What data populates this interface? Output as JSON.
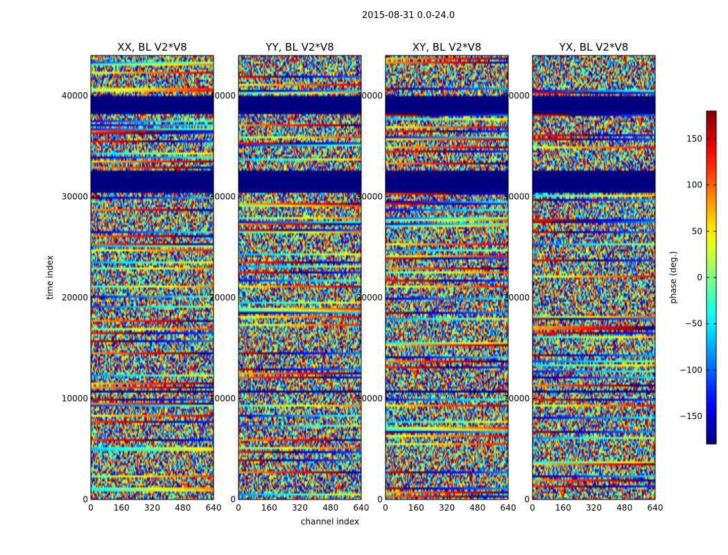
{
  "chart_data": {
    "type": "heatmap",
    "suptitle": "2015-08-31 0.0-24.0",
    "xlabel": "channel index",
    "ylabel": "time index",
    "xlim": [
      0,
      640
    ],
    "ylim": [
      0,
      44000
    ],
    "x_ticks": [
      "0",
      "160",
      "320",
      "480",
      "640"
    ],
    "x_tick_values": [
      0,
      160,
      320,
      480,
      640
    ],
    "y_ticks": [
      "0",
      "10000",
      "20000",
      "30000",
      "40000"
    ],
    "y_tick_values": [
      0,
      10000,
      20000,
      30000,
      40000
    ],
    "colorbar": {
      "label": "phase (deg.)",
      "range": [
        -180,
        180
      ],
      "colormap": "jet",
      "ticks": [
        "150",
        "100",
        "50",
        "0",
        "−50",
        "−100",
        "−150"
      ],
      "tick_values": [
        150,
        100,
        50,
        0,
        -50,
        -100,
        -150
      ]
    },
    "panels": [
      {
        "title": "XX, BL V2*V8"
      },
      {
        "title": "YY, BL V2*V8"
      },
      {
        "title": "XY, BL V2*V8"
      },
      {
        "title": "YX, BL V2*V8"
      }
    ],
    "flagged_time_ranges": [
      [
        38200,
        40000
      ],
      [
        30500,
        32500
      ],
      [
        10700,
        10800
      ]
    ],
    "flag_phase_value": -180
  }
}
